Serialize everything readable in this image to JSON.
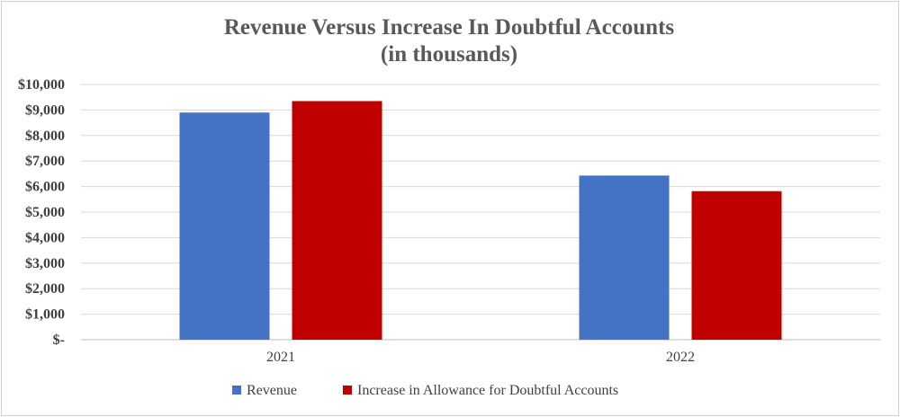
{
  "chart_data": {
    "type": "bar",
    "title": "Revenue Versus Increase In Doubtful Accounts",
    "subtitle": "(in thousands)",
    "categories": [
      "2021",
      "2022"
    ],
    "series": [
      {
        "name": "Revenue",
        "color": "#4472c4",
        "values": [
          8900,
          6430
        ]
      },
      {
        "name": "Increase in Allowance for Doubtful Accounts",
        "color": "#c00000",
        "values": [
          9350,
          5820
        ]
      }
    ],
    "ylim": [
      0,
      10000
    ],
    "yticks": [
      {
        "value": 0,
        "label": "$-"
      },
      {
        "value": 1000,
        "label": "$1,000"
      },
      {
        "value": 2000,
        "label": "$2,000"
      },
      {
        "value": 3000,
        "label": "$3,000"
      },
      {
        "value": 4000,
        "label": "$4,000"
      },
      {
        "value": 5000,
        "label": "$5,000"
      },
      {
        "value": 6000,
        "label": "$6,000"
      },
      {
        "value": 7000,
        "label": "$7,000"
      },
      {
        "value": 8000,
        "label": "$8,000"
      },
      {
        "value": 9000,
        "label": "$9,000"
      },
      {
        "value": 10000,
        "label": "$10,000"
      }
    ],
    "xlabel": "",
    "ylabel": "",
    "grid": true,
    "legend": "bottom"
  }
}
